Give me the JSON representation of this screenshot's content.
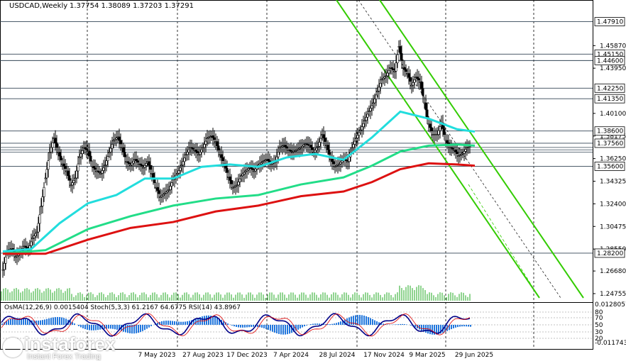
{
  "header": {
    "symbol": "USDCAD,Weekly",
    "ohlc": "1.37754 1.38089 1.37203 1.37291"
  },
  "indicator_label": "OsMA(12,26,9) 0.0015404  Stoch(5,3,3) 61.2167 64.6775  RSI(14) 43.8967",
  "watermark": {
    "brand": "instaforex",
    "tagline": "Instant Forex Trading"
  },
  "colors": {
    "price_bar": "#000000",
    "ma_fast": "#22dddd",
    "ma_mid": "#22dd88",
    "ma_slow": "#dd1111",
    "channel": "#33cc00",
    "level_line": "#334455",
    "osma_histogram": "#2277dd",
    "stoch_main": "#000088",
    "stoch_signal": "#dd0000"
  },
  "chart_data": {
    "type": "candlestick",
    "title": "USDCAD,Weekly",
    "x_labels": [
      "7 May 2023",
      "27 Aug 2023",
      "17 Dec 2023",
      "7 Apr 2024",
      "28 Jul 2024",
      "17 Nov 2024",
      "9 Mar 2025",
      "29 Jun 2025"
    ],
    "y_ticks": [
      "1.45870",
      "1.43950",
      "1.40100",
      "1.38175",
      "1.36250",
      "1.34325",
      "1.32400",
      "1.30475",
      "1.28550",
      "1.26680",
      "1.24755"
    ],
    "level_labels": [
      "1.47910",
      "1.45150",
      "1.44600",
      "1.42250",
      "1.41350",
      "1.38600",
      "1.37560",
      "1.35600",
      "1.28200"
    ],
    "ylim": [
      1.2415,
      1.4885
    ],
    "price_points": [
      [
        0,
        1.268
      ],
      [
        6,
        1.284
      ],
      [
        12,
        1.286
      ],
      [
        18,
        1.279
      ],
      [
        24,
        1.282
      ],
      [
        30,
        1.288
      ],
      [
        36,
        1.285
      ],
      [
        42,
        1.295
      ],
      [
        48,
        1.3
      ],
      [
        54,
        1.322
      ],
      [
        60,
        1.346
      ],
      [
        66,
        1.368
      ],
      [
        72,
        1.38
      ],
      [
        78,
        1.368
      ],
      [
        84,
        1.358
      ],
      [
        90,
        1.352
      ],
      [
        96,
        1.34
      ],
      [
        102,
        1.346
      ],
      [
        108,
        1.364
      ],
      [
        114,
        1.372
      ],
      [
        120,
        1.369
      ],
      [
        126,
        1.356
      ],
      [
        132,
        1.352
      ],
      [
        138,
        1.35
      ],
      [
        144,
        1.357
      ],
      [
        150,
        1.368
      ],
      [
        156,
        1.378
      ],
      [
        162,
        1.381
      ],
      [
        168,
        1.372
      ],
      [
        174,
        1.36
      ],
      [
        180,
        1.357
      ],
      [
        186,
        1.362
      ],
      [
        192,
        1.358
      ],
      [
        198,
        1.355
      ],
      [
        204,
        1.36
      ],
      [
        210,
        1.35
      ],
      [
        216,
        1.338
      ],
      [
        222,
        1.33
      ],
      [
        228,
        1.333
      ],
      [
        234,
        1.336
      ],
      [
        240,
        1.345
      ],
      [
        246,
        1.35
      ],
      [
        252,
        1.357
      ],
      [
        258,
        1.366
      ],
      [
        264,
        1.372
      ],
      [
        270,
        1.37
      ],
      [
        276,
        1.366
      ],
      [
        282,
        1.372
      ],
      [
        288,
        1.38
      ],
      [
        294,
        1.382
      ],
      [
        300,
        1.377
      ],
      [
        306,
        1.366
      ],
      [
        312,
        1.358
      ],
      [
        318,
        1.347
      ],
      [
        324,
        1.338
      ],
      [
        330,
        1.34
      ],
      [
        336,
        1.348
      ],
      [
        342,
        1.352
      ],
      [
        348,
        1.355
      ],
      [
        354,
        1.352
      ],
      [
        360,
        1.357
      ],
      [
        366,
        1.36
      ],
      [
        372,
        1.362
      ],
      [
        378,
        1.358
      ],
      [
        384,
        1.36
      ],
      [
        390,
        1.372
      ],
      [
        396,
        1.374
      ],
      [
        402,
        1.37
      ],
      [
        408,
        1.368
      ],
      [
        414,
        1.37
      ],
      [
        420,
        1.372
      ],
      [
        426,
        1.375
      ],
      [
        432,
        1.374
      ],
      [
        438,
        1.368
      ],
      [
        444,
        1.373
      ],
      [
        450,
        1.383
      ],
      [
        456,
        1.374
      ],
      [
        462,
        1.362
      ],
      [
        468,
        1.356
      ],
      [
        474,
        1.358
      ],
      [
        480,
        1.362
      ],
      [
        486,
        1.36
      ],
      [
        492,
        1.372
      ],
      [
        498,
        1.38
      ],
      [
        504,
        1.387
      ],
      [
        510,
        1.395
      ],
      [
        516,
        1.403
      ],
      [
        522,
        1.41
      ],
      [
        528,
        1.42
      ],
      [
        534,
        1.43
      ],
      [
        540,
        1.433
      ],
      [
        546,
        1.44
      ],
      [
        552,
        1.437
      ],
      [
        558,
        1.458
      ],
      [
        564,
        1.44
      ],
      [
        570,
        1.435
      ],
      [
        576,
        1.425
      ],
      [
        582,
        1.432
      ],
      [
        588,
        1.428
      ],
      [
        594,
        1.41
      ],
      [
        600,
        1.392
      ],
      [
        606,
        1.383
      ],
      [
        612,
        1.383
      ],
      [
        618,
        1.393
      ],
      [
        624,
        1.378
      ],
      [
        630,
        1.372
      ],
      [
        636,
        1.37
      ],
      [
        642,
        1.365
      ],
      [
        648,
        1.367
      ],
      [
        654,
        1.372
      ],
      [
        660,
        1.373
      ]
    ],
    "series": [
      {
        "values": [
          [
            0,
            1.2835
          ],
          [
            40,
            1.2855
          ],
          [
            80,
            1.3075
          ],
          [
            120,
            1.3245
          ],
          [
            160,
            1.3315
          ],
          [
            200,
            1.3455
          ],
          [
            240,
            1.3455
          ],
          [
            280,
            1.3555
          ],
          [
            320,
            1.3575
          ],
          [
            360,
            1.3555
          ],
          [
            400,
            1.3635
          ],
          [
            440,
            1.3665
          ],
          [
            480,
            1.3615
          ],
          [
            520,
            1.3805
          ],
          [
            560,
            1.4025
          ],
          [
            600,
            1.3965
          ],
          [
            640,
            1.3875
          ],
          [
            665,
            1.3855
          ]
        ]
      },
      {
        "values": [
          [
            0,
            1.2815
          ],
          [
            60,
            1.2845
          ],
          [
            120,
            1.3025
          ],
          [
            180,
            1.3135
          ],
          [
            240,
            1.3225
          ],
          [
            300,
            1.3285
          ],
          [
            360,
            1.3315
          ],
          [
            420,
            1.3405
          ],
          [
            480,
            1.3465
          ],
          [
            520,
            1.3565
          ],
          [
            560,
            1.3685
          ],
          [
            600,
            1.3735
          ],
          [
            640,
            1.3745
          ],
          [
            665,
            1.3735
          ]
        ]
      },
      {
        "values": [
          [
            0,
            1.2815
          ],
          [
            60,
            1.2815
          ],
          [
            120,
            1.2935
          ],
          [
            180,
            1.3035
          ],
          [
            240,
            1.3085
          ],
          [
            300,
            1.3175
          ],
          [
            360,
            1.3225
          ],
          [
            420,
            1.3305
          ],
          [
            480,
            1.3345
          ],
          [
            520,
            1.3425
          ],
          [
            560,
            1.3535
          ],
          [
            600,
            1.3585
          ],
          [
            640,
            1.3575
          ],
          [
            665,
            1.3565
          ]
        ]
      }
    ]
  }
}
